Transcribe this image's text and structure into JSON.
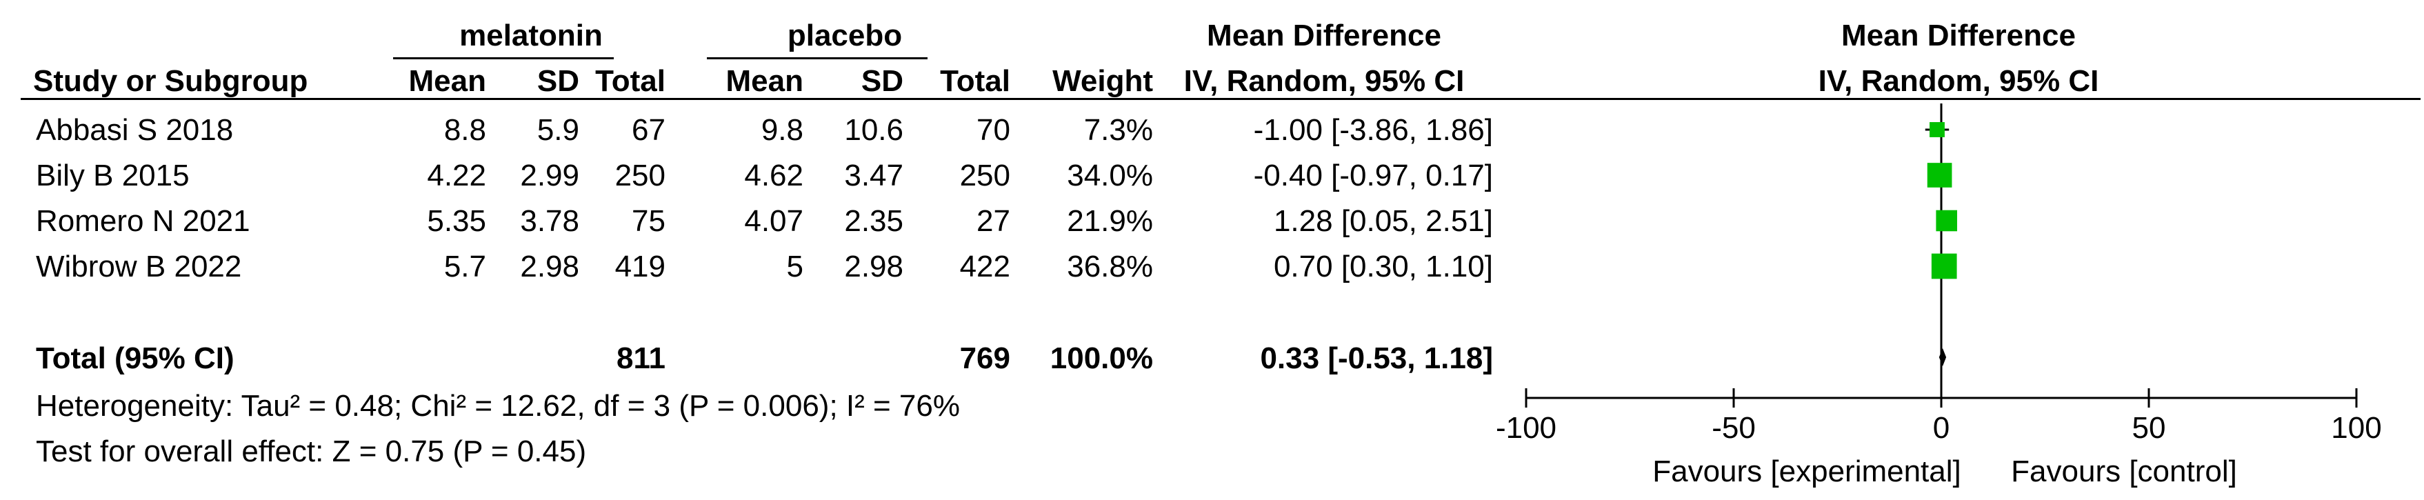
{
  "headers": {
    "group1": "melatonin",
    "group2": "placebo",
    "md_title": "Mean Difference",
    "md_method": "IV, Random, 95% CI",
    "plot_title": "Mean Difference",
    "plot_method": "IV, Random, 95% CI",
    "study": "Study or Subgroup",
    "mean": "Mean",
    "sd": "SD",
    "total": "Total",
    "weight": "Weight"
  },
  "studies": [
    {
      "name": "Abbasi S 2018",
      "m1": "8.8",
      "sd1": "5.9",
      "n1": "67",
      "m2": "9.8",
      "sd2": "10.6",
      "n2": "70",
      "weight": "7.3%",
      "ci_text": "-1.00 [-3.86, 1.86]"
    },
    {
      "name": "Bily B 2015",
      "m1": "4.22",
      "sd1": "2.99",
      "n1": "250",
      "m2": "4.62",
      "sd2": "3.47",
      "n2": "250",
      "weight": "34.0%",
      "ci_text": "-0.40 [-0.97, 0.17]"
    },
    {
      "name": "Romero N 2021",
      "m1": "5.35",
      "sd1": "3.78",
      "n1": "75",
      "m2": "4.07",
      "sd2": "2.35",
      "n2": "27",
      "weight": "21.9%",
      "ci_text": "1.28 [0.05, 2.51]"
    },
    {
      "name": "Wibrow B 2022",
      "m1": "5.7",
      "sd1": "2.98",
      "n1": "419",
      "m2": "5",
      "sd2": "2.98",
      "n2": "422",
      "weight": "36.8%",
      "ci_text": "0.70 [0.30, 1.10]"
    }
  ],
  "total": {
    "label": "Total (95% CI)",
    "n1": "811",
    "n2": "769",
    "weight": "100.0%",
    "ci_text": "0.33 [-0.53, 1.18]"
  },
  "heterogeneity": "Heterogeneity: Tau² = 0.48; Chi² = 12.62, df = 3 (P = 0.006); I² = 76%",
  "overall_effect": "Test for overall effect: Z = 0.75 (P = 0.45)",
  "favours_left": "Favours [experimental]",
  "favours_right": "Favours [control]",
  "colors": {
    "marker": "#00c000",
    "text": "#000000"
  },
  "chart_data": {
    "type": "forest",
    "xlim": [
      -100,
      100
    ],
    "ticks": [
      -100,
      -50,
      0,
      50,
      100
    ],
    "tick_labels": [
      "-100",
      "-50",
      "0",
      "50",
      "100"
    ],
    "points": [
      {
        "name": "Abbasi S 2018",
        "md": -1.0,
        "lo": -3.86,
        "hi": 1.86,
        "weight": 7.3
      },
      {
        "name": "Bily B 2015",
        "md": -0.4,
        "lo": -0.97,
        "hi": 0.17,
        "weight": 34.0
      },
      {
        "name": "Romero N 2021",
        "md": 1.28,
        "lo": 0.05,
        "hi": 2.51,
        "weight": 21.9
      },
      {
        "name": "Wibrow B 2022",
        "md": 0.7,
        "lo": 0.3,
        "hi": 1.1,
        "weight": 36.8
      }
    ],
    "pooled": {
      "md": 0.33,
      "lo": -0.53,
      "hi": 1.18
    }
  }
}
